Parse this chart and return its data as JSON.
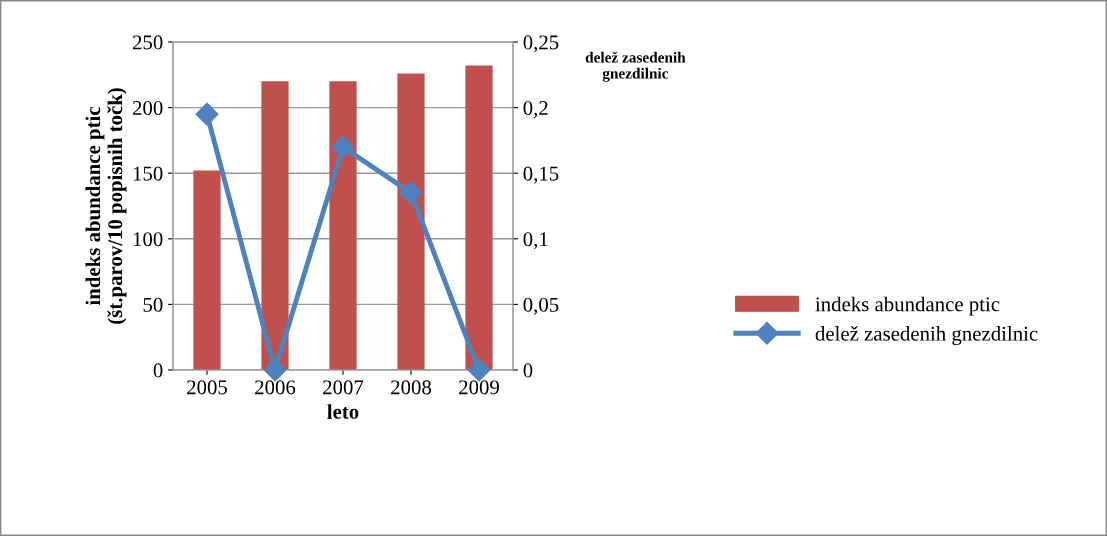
{
  "chart_data": {
    "type": "bar",
    "categories": [
      "2005",
      "2006",
      "2007",
      "2008",
      "2009"
    ],
    "series": [
      {
        "name": "indeks abundance ptic",
        "color": "#c0504d",
        "values": [
          152,
          220,
          220,
          226,
          232
        ]
      },
      {
        "name": "delež zasedenih gnezdilnic",
        "color": "#4f81bd",
        "type": "line",
        "axis": "y2",
        "marker": "diamond",
        "values": [
          0.195,
          0,
          0.17,
          0.135,
          0
        ]
      }
    ],
    "xlabel": "leto",
    "ylabel": "indeks abundance ptic\n(št.parov/10 popisnih točk)",
    "y2label": "delež zasedenih\ngnezdilnic",
    "ylim": [
      0,
      250
    ],
    "yticks": [
      0,
      50,
      100,
      150,
      200,
      250
    ],
    "y2lim": [
      0,
      0.25
    ],
    "y2ticks": [
      {
        "value": 0,
        "label": "0"
      },
      {
        "value": 0.05,
        "label": "0,05"
      },
      {
        "value": 0.1,
        "label": "0,1"
      },
      {
        "value": 0.15,
        "label": "0,15"
      },
      {
        "value": 0.2,
        "label": "0,2"
      },
      {
        "value": 0.25,
        "label": "0,25"
      }
    ],
    "grid": "y",
    "legend": "right"
  }
}
